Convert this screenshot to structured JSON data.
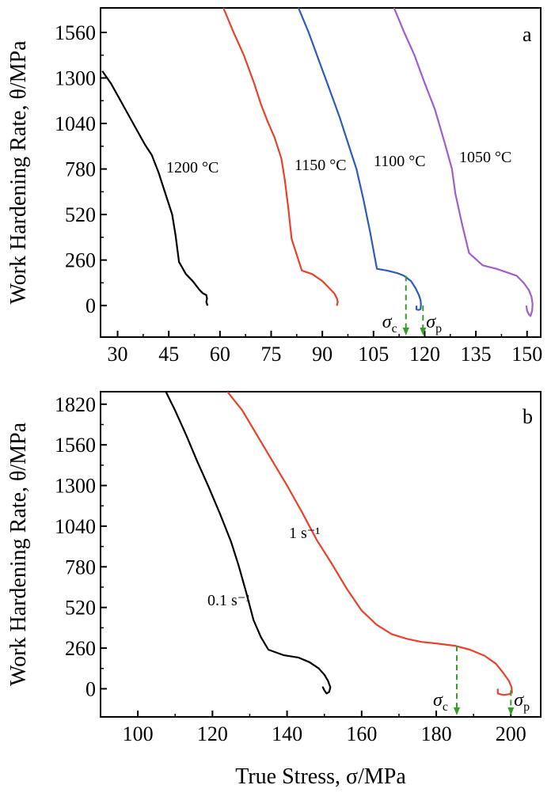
{
  "chart_data": [
    {
      "type": "line",
      "panel_label": "a",
      "ylabel": "Work Hardening Rate, θ/MPa",
      "xlabel": "",
      "xlim": [
        25,
        154
      ],
      "ylim": [
        -180,
        1700
      ],
      "x_ticks": [
        30,
        45,
        60,
        75,
        90,
        105,
        120,
        135,
        150
      ],
      "y_ticks": [
        0,
        260,
        520,
        780,
        1040,
        1300,
        1560
      ],
      "series": [
        {
          "name": "1200 °C",
          "color": "#000000",
          "x": [
            25.5,
            28,
            30,
            32,
            34,
            36,
            38,
            40,
            42,
            44,
            46,
            47,
            48,
            50,
            52,
            54,
            55,
            56,
            56.2,
            56,
            56.3,
            56.2
          ],
          "y": [
            1340,
            1270,
            1200,
            1130,
            1060,
            990,
            920,
            860,
            760,
            640,
            520,
            400,
            250,
            180,
            140,
            90,
            70,
            60,
            40,
            20,
            5,
            0
          ]
        },
        {
          "name": "1150 °C",
          "color": "#e8412c",
          "x": [
            61,
            64,
            67,
            70,
            72,
            74,
            76,
            78,
            79,
            80,
            81,
            84,
            87,
            90,
            92,
            93.5,
            94.3,
            94.5,
            94.3,
            94.5
          ],
          "y": [
            1700,
            1560,
            1430,
            1270,
            1150,
            1050,
            960,
            840,
            720,
            560,
            380,
            200,
            180,
            140,
            100,
            70,
            40,
            20,
            5,
            0
          ]
        },
        {
          "name": "1100 °C",
          "color": "#2d5cb8",
          "x": [
            83,
            86,
            89,
            92,
            95,
            98,
            100,
            102,
            104,
            106,
            109,
            112,
            114,
            116,
            117.3,
            118.3,
            118.8,
            118.9,
            118.8,
            118.3,
            117.6,
            117.6
          ],
          "y": [
            1700,
            1560,
            1400,
            1240,
            1080,
            900,
            780,
            610,
            420,
            210,
            200,
            185,
            170,
            140,
            100,
            60,
            30,
            5,
            -20,
            -25,
            -22,
            0
          ]
        },
        {
          "name": "1050 °C",
          "color": "#a05dcc",
          "x": [
            111,
            114,
            117,
            120,
            123,
            126,
            128,
            129,
            131,
            133,
            137,
            141,
            144,
            147,
            149,
            150.5,
            151.3,
            151.6,
            151.5,
            151,
            150.5,
            150,
            149.8
          ],
          "y": [
            1700,
            1560,
            1430,
            1270,
            1120,
            920,
            780,
            640,
            460,
            300,
            230,
            210,
            190,
            170,
            130,
            90,
            50,
            10,
            -30,
            -60,
            -50,
            -30,
            0
          ]
        }
      ],
      "annotations": [
        {
          "text": "σ",
          "sub": "c",
          "x": 114.5
        },
        {
          "text": "σ",
          "sub": "p",
          "x": 119.5
        }
      ]
    },
    {
      "type": "line",
      "panel_label": "b",
      "ylabel": "Work Hardening Rate, θ/MPa",
      "xlabel": "True Stress, σ/MPa",
      "xlim": [
        90,
        208
      ],
      "ylim": [
        -180,
        1900
      ],
      "x_ticks": [
        100,
        120,
        140,
        160,
        180,
        200
      ],
      "y_ticks": [
        0,
        260,
        520,
        780,
        1040,
        1300,
        1560,
        1820
      ],
      "series": [
        {
          "name": "0.1 s⁻¹",
          "color": "#000000",
          "x": [
            107.5,
            110,
            113,
            116,
            119,
            122,
            125,
            127,
            129,
            131,
            133,
            135,
            139,
            143,
            146,
            148.5,
            150,
            151,
            151.6,
            151.3,
            150.6,
            150,
            149.6,
            149.8
          ],
          "y": [
            1900,
            1780,
            1620,
            1450,
            1290,
            1120,
            940,
            790,
            620,
            440,
            330,
            250,
            215,
            200,
            170,
            130,
            90,
            50,
            10,
            -20,
            -30,
            -10,
            10,
            0
          ]
        },
        {
          "name": "1 s⁻¹",
          "color": "#e8412c",
          "x": [
            124,
            128,
            132,
            136,
            140,
            144,
            148,
            152,
            156,
            160,
            164,
            168,
            172,
            176,
            180,
            185,
            189,
            193,
            196,
            198,
            199.5,
            200.2,
            200.3,
            199.5,
            198,
            196.5,
            196.5
          ],
          "y": [
            1900,
            1780,
            1620,
            1460,
            1300,
            1130,
            950,
            800,
            640,
            500,
            410,
            350,
            320,
            300,
            290,
            275,
            250,
            210,
            160,
            100,
            50,
            10,
            -25,
            -35,
            -40,
            -30,
            0
          ]
        }
      ],
      "annotations": [
        {
          "text": "σ",
          "sub": "c",
          "x": 185.5
        },
        {
          "text": "σ",
          "sub": "p",
          "x": 200
        }
      ]
    }
  ]
}
